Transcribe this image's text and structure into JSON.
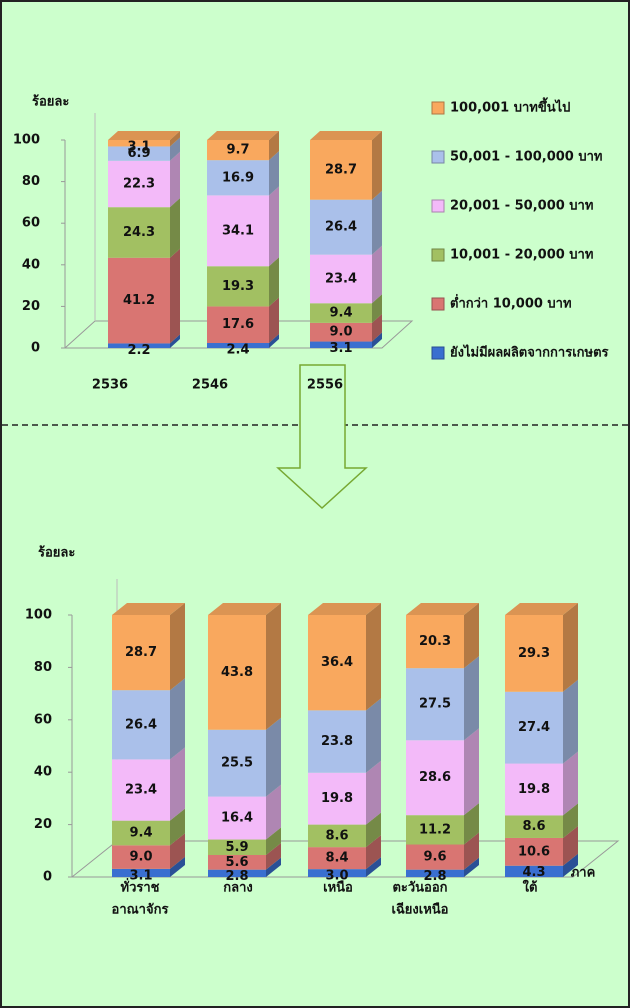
{
  "chart_data": [
    {
      "type": "bar",
      "stacked": true,
      "y_label": "ร้อยละ",
      "categories": [
        "2536",
        "2546",
        "2556"
      ],
      "ylim": [
        0,
        100
      ],
      "yticks": [
        0,
        20,
        40,
        60,
        80,
        100
      ],
      "legend": "right",
      "series": [
        {
          "name": "ยังไม่มีผลผลิตจากการเกษตร",
          "color": "#3a6fd0",
          "values": [
            2.2,
            2.4,
            3.1
          ],
          "value_labels": [
            "2.2",
            "2.4",
            "3.1"
          ]
        },
        {
          "name": "ต่ำกว่า 10,000 บาท",
          "color": "#d97572",
          "values": [
            41.2,
            17.6,
            9.0
          ],
          "value_labels": [
            "41.2",
            "17.6",
            "9.0"
          ]
        },
        {
          "name": "10,001 - 20,000 บาท",
          "color": "#a2c062",
          "values": [
            24.3,
            19.3,
            9.4
          ],
          "value_labels": [
            "24.3",
            "19.3",
            "9.4"
          ]
        },
        {
          "name": "20,001 - 50,000 บาท",
          "color": "#f3baf9",
          "values": [
            22.3,
            34.1,
            23.4
          ],
          "value_labels": [
            "22.3",
            "34.1",
            "23.4"
          ]
        },
        {
          "name": "50,001 - 100,000 บาท",
          "color": "#aac0ea",
          "values": [
            6.9,
            16.9,
            26.4
          ],
          "value_labels": [
            "6.9",
            "16.9",
            "26.4"
          ]
        },
        {
          "name": "100,001 บาทขึ้นไป",
          "color": "#f9a85e",
          "values": [
            3.1,
            9.7,
            28.7
          ],
          "value_labels": [
            "3.1",
            "9.7",
            "28.7"
          ]
        }
      ]
    },
    {
      "type": "bar",
      "stacked": true,
      "y_label": "ร้อยละ",
      "x_label": "ภาค",
      "categories": [
        [
          "ทั่วราช",
          "อาณาจักร"
        ],
        [
          "กลาง"
        ],
        [
          "เหนือ"
        ],
        [
          "ตะวันออก",
          "เฉียงเหนือ"
        ],
        [
          "ใต้"
        ]
      ],
      "ylim": [
        0,
        100
      ],
      "yticks": [
        0,
        20,
        40,
        60,
        80,
        100
      ],
      "series": [
        {
          "name": "ยังไม่มีผลผลิตจากการเกษตร",
          "color": "#3a6fd0",
          "values": [
            3.1,
            2.8,
            3.0,
            2.8,
            4.3
          ],
          "value_labels": [
            "3.1",
            "2.8",
            "3.0",
            "2.8",
            "4.3"
          ]
        },
        {
          "name": "ต่ำกว่า 10,000 บาท",
          "color": "#d97572",
          "values": [
            9.0,
            5.6,
            8.4,
            9.6,
            10.6
          ],
          "value_labels": [
            "9.0",
            "5.6",
            "8.4",
            "9.6",
            "10.6"
          ]
        },
        {
          "name": "10,001 - 20,000 บาท",
          "color": "#a2c062",
          "values": [
            9.4,
            5.9,
            8.6,
            11.2,
            8.6
          ],
          "value_labels": [
            "9.4",
            "5.9",
            "8.6",
            "11.2",
            "8.6"
          ]
        },
        {
          "name": "20,001 - 50,000 บาท",
          "color": "#f3baf9",
          "values": [
            23.4,
            16.4,
            19.8,
            28.6,
            19.8
          ],
          "value_labels": [
            "23.4",
            "16.4",
            "19.8",
            "28.6",
            "19.8"
          ]
        },
        {
          "name": "50,001 - 100,000 บาท",
          "color": "#aac0ea",
          "values": [
            26.4,
            25.5,
            23.8,
            27.5,
            27.4
          ],
          "value_labels": [
            "26.4",
            "25.5",
            "23.8",
            "27.5",
            "27.4"
          ]
        },
        {
          "name": "100,001 บาทขึ้นไป",
          "color": "#f9a85e",
          "values": [
            28.7,
            43.8,
            36.4,
            20.3,
            29.3
          ],
          "value_labels": [
            "28.7",
            "43.8",
            "36.4",
            "20.3",
            "29.3"
          ]
        }
      ]
    }
  ]
}
